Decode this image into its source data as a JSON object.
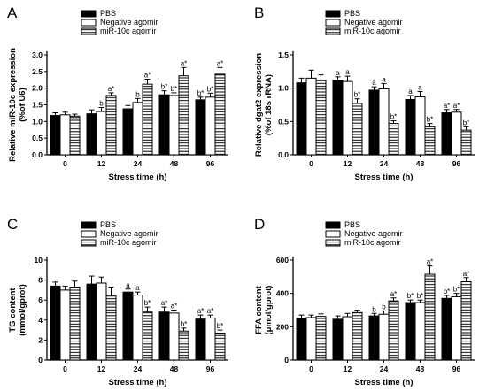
{
  "legend": {
    "series": [
      "PBS",
      "Negative agomir",
      "miR-10c agomir"
    ],
    "fills": [
      "solid",
      "open",
      "hatched"
    ]
  },
  "chart_data": [
    {
      "panel": "A",
      "type": "bar",
      "categories": [
        "0",
        "12",
        "24",
        "48",
        "96"
      ],
      "xlabel": "Stress time (h)",
      "ylabel_lines": [
        "Relative miR-10c expression",
        "(%of U6)"
      ],
      "ylim": [
        0,
        3
      ],
      "yticks": [
        "0.0",
        "0.5",
        "1.0",
        "1.5",
        "2.0",
        "2.5",
        "3.0"
      ],
      "series": [
        {
          "name": "PBS",
          "values": [
            1.18,
            1.23,
            1.38,
            1.8,
            1.65
          ],
          "errors": [
            0.08,
            0.12,
            0.1,
            0.12,
            0.08
          ],
          "labels": [
            "",
            "",
            "",
            "b*",
            "b*"
          ]
        },
        {
          "name": "Negative agomir",
          "values": [
            1.2,
            1.3,
            1.57,
            1.78,
            1.73
          ],
          "errors": [
            0.08,
            0.12,
            0.12,
            0.08,
            0.12
          ],
          "labels": [
            "",
            "b",
            "b",
            "b*",
            "b*"
          ]
        },
        {
          "name": "miR-10c agomir",
          "values": [
            1.16,
            1.78,
            2.12,
            2.37,
            2.42
          ],
          "errors": [
            0.06,
            0.08,
            0.15,
            0.25,
            0.2
          ],
          "labels": [
            "",
            "a*",
            "a*",
            "a*",
            "a*"
          ]
        }
      ]
    },
    {
      "panel": "B",
      "type": "bar",
      "categories": [
        "0",
        "12",
        "24",
        "48",
        "96"
      ],
      "xlabel": "Stress time (h)",
      "ylabel_lines": [
        "Relative dgat2 expression",
        "(%of 18s rRNA)"
      ],
      "ylim": [
        0,
        1.5
      ],
      "yticks": [
        "0.0",
        "0.5",
        "1.0",
        "1.5"
      ],
      "series": [
        {
          "name": "PBS",
          "values": [
            1.08,
            1.12,
            0.97,
            0.83,
            0.63
          ],
          "errors": [
            0.07,
            0.05,
            0.05,
            0.06,
            0.05
          ],
          "labels": [
            "",
            "a",
            "a",
            "a",
            "a*"
          ]
        },
        {
          "name": "Negative agomir",
          "values": [
            1.15,
            1.1,
            0.99,
            0.87,
            0.64
          ],
          "errors": [
            0.12,
            0.08,
            0.08,
            0.08,
            0.04
          ],
          "labels": [
            "",
            "a",
            "a",
            "a",
            "a*"
          ]
        },
        {
          "name": "miR-10c agomir",
          "values": [
            1.12,
            0.77,
            0.47,
            0.42,
            0.37
          ],
          "errors": [
            0.08,
            0.07,
            0.04,
            0.05,
            0.05
          ],
          "labels": [
            "",
            "b*",
            "b*",
            "b*",
            "b*"
          ]
        }
      ]
    },
    {
      "panel": "C",
      "type": "bar",
      "categories": [
        "0",
        "12",
        "24",
        "48",
        "96"
      ],
      "xlabel": "Stress time (h)",
      "ylabel_lines": [
        "TG content",
        "(mmol/gprot)"
      ],
      "ylim": [
        0,
        10
      ],
      "yticks": [
        "0",
        "2",
        "4",
        "6",
        "8",
        "10"
      ],
      "series": [
        {
          "name": "PBS",
          "values": [
            7.4,
            7.6,
            6.8,
            4.8,
            4.1
          ],
          "errors": [
            0.4,
            0.8,
            0.3,
            0.5,
            0.4
          ],
          "labels": [
            "",
            "",
            "a",
            "a*",
            "a*"
          ]
        },
        {
          "name": "Negative agomir",
          "values": [
            7.0,
            7.7,
            6.5,
            4.7,
            4.2
          ],
          "errors": [
            0.4,
            0.6,
            0.3,
            0.3,
            0.3
          ],
          "labels": [
            "",
            "",
            "a",
            "a*",
            "a*"
          ]
        },
        {
          "name": "miR-10c agomir",
          "values": [
            7.3,
            6.4,
            4.8,
            2.9,
            2.7
          ],
          "errors": [
            0.6,
            0.9,
            0.5,
            0.3,
            0.3
          ],
          "labels": [
            "",
            "",
            "b*",
            "b*",
            "b*"
          ]
        }
      ]
    },
    {
      "panel": "D",
      "type": "bar",
      "categories": [
        "0",
        "12",
        "24",
        "48",
        "96"
      ],
      "xlabel": "Stress time (h)",
      "ylabel_lines": [
        "FFA content",
        "(μmol/gprot)"
      ],
      "ylim": [
        0,
        600
      ],
      "yticks": [
        "0",
        "200",
        "400",
        "600"
      ],
      "series": [
        {
          "name": "PBS",
          "values": [
            250,
            245,
            265,
            345,
            370
          ],
          "errors": [
            20,
            20,
            15,
            15,
            18
          ],
          "labels": [
            "",
            "",
            "b",
            "b*",
            "b*"
          ]
        },
        {
          "name": "Negative agomir",
          "values": [
            255,
            260,
            275,
            345,
            380
          ],
          "errors": [
            15,
            20,
            20,
            15,
            20
          ],
          "labels": [
            "",
            "",
            "b",
            "b*",
            "b*"
          ]
        },
        {
          "name": "miR-10c agomir",
          "values": [
            262,
            285,
            355,
            515,
            470
          ],
          "errors": [
            15,
            15,
            18,
            50,
            25
          ],
          "labels": [
            "",
            "",
            "a*",
            "a*",
            "a*"
          ]
        }
      ]
    }
  ]
}
